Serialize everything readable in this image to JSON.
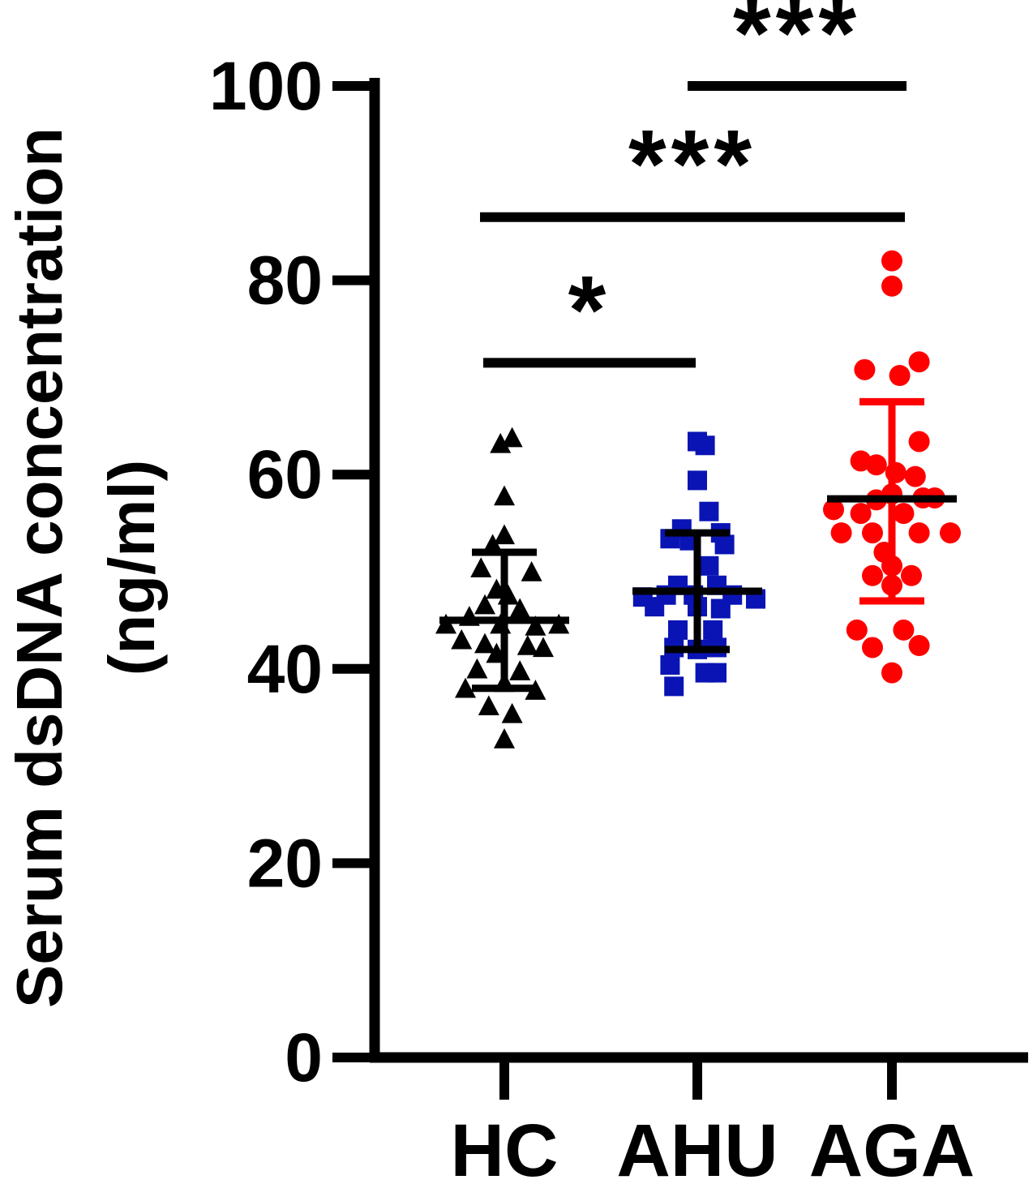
{
  "chart_data": {
    "type": "scatter",
    "ylabel_line1": "Serum dsDNA concentration",
    "ylabel_line2": "(ng/ml)",
    "ylim": [
      0,
      100
    ],
    "yticks": [
      0,
      20,
      40,
      60,
      80,
      100
    ],
    "categories": [
      "HC",
      "AHU",
      "AGA"
    ],
    "grid": false,
    "legend": "none",
    "series": [
      {
        "category": "HC",
        "marker": "triangle",
        "color": "#000000",
        "mean": 45.0,
        "sd_upper": 52.0,
        "sd_lower": 38.0,
        "points": [
          {
            "o": -0.02,
            "y": 63.2
          },
          {
            "o": 0.04,
            "y": 63.8
          },
          {
            "o": 0.0,
            "y": 57.8
          },
          {
            "o": -0.06,
            "y": 52.8
          },
          {
            "o": 0.0,
            "y": 53.8
          },
          {
            "o": -0.12,
            "y": 50.4
          },
          {
            "o": 0.14,
            "y": 50.0
          },
          {
            "o": -0.04,
            "y": 48.2
          },
          {
            "o": 0.02,
            "y": 47.6
          },
          {
            "o": -0.1,
            "y": 46.6
          },
          {
            "o": 0.08,
            "y": 46.2
          },
          {
            "o": -0.3,
            "y": 44.6
          },
          {
            "o": -0.18,
            "y": 45.4
          },
          {
            "o": -0.02,
            "y": 44.6
          },
          {
            "o": 0.16,
            "y": 44.4
          },
          {
            "o": 0.28,
            "y": 44.6
          },
          {
            "o": -0.22,
            "y": 43.0
          },
          {
            "o": -0.1,
            "y": 42.6
          },
          {
            "o": 0.12,
            "y": 42.4
          },
          {
            "o": 0.2,
            "y": 42.2
          },
          {
            "o": -0.04,
            "y": 41.6
          },
          {
            "o": -0.14,
            "y": 40.0
          },
          {
            "o": 0.08,
            "y": 39.8
          },
          {
            "o": -0.2,
            "y": 38.0
          },
          {
            "o": 0.0,
            "y": 38.6
          },
          {
            "o": 0.16,
            "y": 37.8
          },
          {
            "o": -0.08,
            "y": 36.2
          },
          {
            "o": 0.04,
            "y": 35.4
          },
          {
            "o": 0.0,
            "y": 32.8
          }
        ]
      },
      {
        "category": "AHU",
        "marker": "square",
        "color": "#0a14b4",
        "mean": 48.0,
        "sd_upper": 54.0,
        "sd_lower": 42.0,
        "points": [
          {
            "o": 0.0,
            "y": 63.4
          },
          {
            "o": 0.04,
            "y": 63.0
          },
          {
            "o": 0.0,
            "y": 59.4
          },
          {
            "o": 0.06,
            "y": 56.2
          },
          {
            "o": -0.08,
            "y": 54.4
          },
          {
            "o": 0.12,
            "y": 54.0
          },
          {
            "o": -0.14,
            "y": 53.4
          },
          {
            "o": -0.04,
            "y": 53.2
          },
          {
            "o": 0.14,
            "y": 52.8
          },
          {
            "o": 0.06,
            "y": 50.6
          },
          {
            "o": -0.1,
            "y": 48.6
          },
          {
            "o": 0.1,
            "y": 48.6
          },
          {
            "o": -0.28,
            "y": 47.4
          },
          {
            "o": -0.16,
            "y": 47.6
          },
          {
            "o": -0.02,
            "y": 47.6
          },
          {
            "o": 0.18,
            "y": 47.6
          },
          {
            "o": 0.3,
            "y": 47.2
          },
          {
            "o": -0.22,
            "y": 46.4
          },
          {
            "o": 0.0,
            "y": 46.4
          },
          {
            "o": 0.12,
            "y": 46.2
          },
          {
            "o": -0.1,
            "y": 44.0
          },
          {
            "o": 0.08,
            "y": 44.0
          },
          {
            "o": -0.12,
            "y": 42.2
          },
          {
            "o": 0.0,
            "y": 42.0
          },
          {
            "o": 0.1,
            "y": 42.2
          },
          {
            "o": -0.14,
            "y": 40.4
          },
          {
            "o": 0.04,
            "y": 39.6
          },
          {
            "o": 0.1,
            "y": 39.6
          },
          {
            "o": -0.12,
            "y": 38.2
          }
        ]
      },
      {
        "category": "AGA",
        "marker": "circle",
        "color": "#ff0000",
        "mean": 57.5,
        "sd_upper": 67.5,
        "sd_lower": 47.0,
        "points": [
          {
            "o": 0.0,
            "y": 82.0
          },
          {
            "o": 0.0,
            "y": 79.4
          },
          {
            "o": 0.14,
            "y": 71.6
          },
          {
            "o": -0.14,
            "y": 70.8
          },
          {
            "o": 0.04,
            "y": 70.2
          },
          {
            "o": 0.14,
            "y": 63.4
          },
          {
            "o": -0.16,
            "y": 61.4
          },
          {
            "o": -0.08,
            "y": 61.0
          },
          {
            "o": 0.02,
            "y": 60.2
          },
          {
            "o": 0.12,
            "y": 59.8
          },
          {
            "o": -0.08,
            "y": 57.4
          },
          {
            "o": 0.0,
            "y": 58.0
          },
          {
            "o": 0.16,
            "y": 57.6
          },
          {
            "o": 0.22,
            "y": 57.6
          },
          {
            "o": -0.3,
            "y": 56.4
          },
          {
            "o": -0.16,
            "y": 56.0
          },
          {
            "o": 0.06,
            "y": 56.0
          },
          {
            "o": -0.26,
            "y": 54.0
          },
          {
            "o": -0.1,
            "y": 54.0
          },
          {
            "o": 0.14,
            "y": 54.0
          },
          {
            "o": 0.3,
            "y": 54.0
          },
          {
            "o": -0.04,
            "y": 52.0
          },
          {
            "o": 0.0,
            "y": 50.6
          },
          {
            "o": -0.1,
            "y": 49.6
          },
          {
            "o": 0.1,
            "y": 49.6
          },
          {
            "o": 0.0,
            "y": 48.6
          },
          {
            "o": -0.18,
            "y": 44.0
          },
          {
            "o": 0.06,
            "y": 44.0
          },
          {
            "o": -0.1,
            "y": 42.2
          },
          {
            "o": 0.14,
            "y": 42.4
          },
          {
            "o": 0.0,
            "y": 39.6
          }
        ]
      }
    ],
    "significance": [
      {
        "from": "HC",
        "to": "AHU",
        "y": 71.5,
        "label": "*"
      },
      {
        "from": "HC",
        "to": "AGA",
        "y": 86.5,
        "label": "***"
      },
      {
        "from": "AHU",
        "to": "AGA",
        "y": 100,
        "label": "***"
      }
    ]
  }
}
